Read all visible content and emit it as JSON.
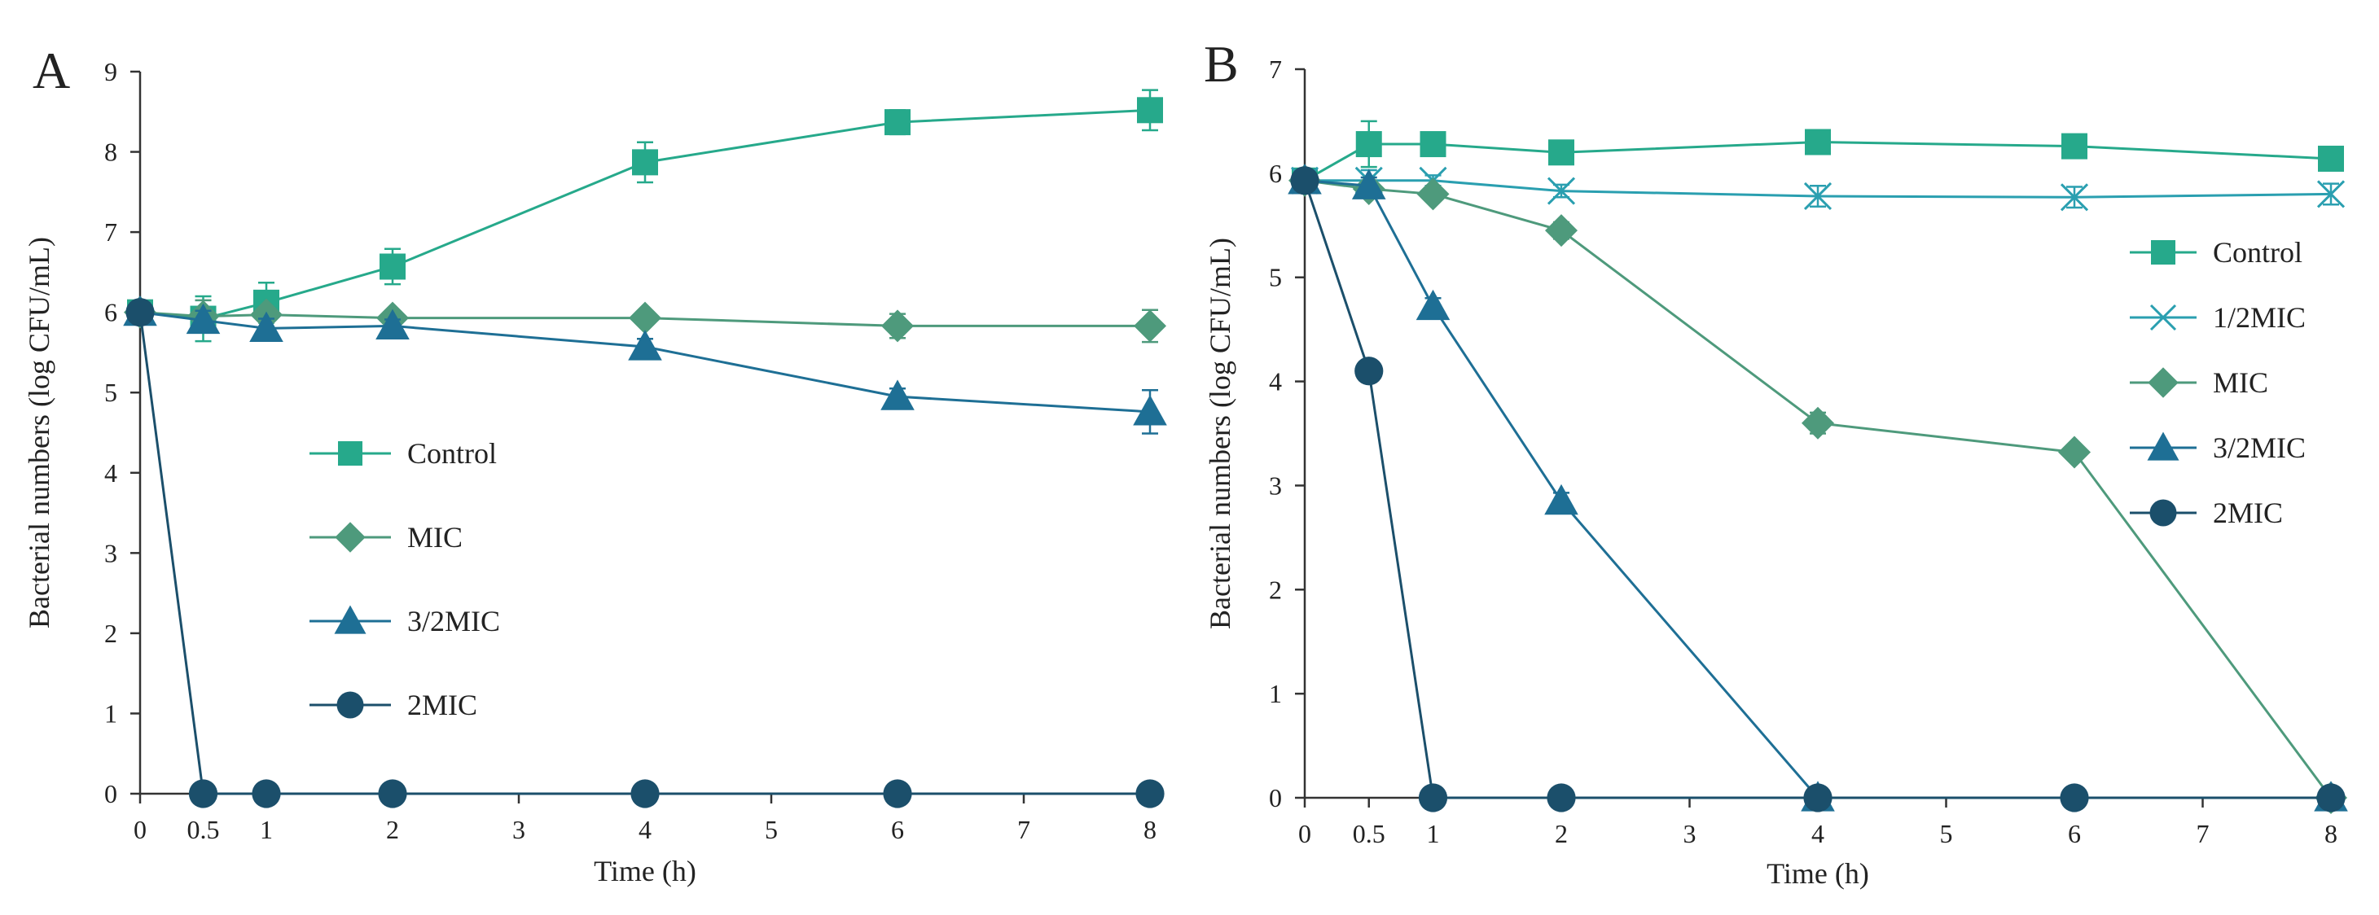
{
  "chart_data": [
    {
      "panel": "A",
      "type": "line",
      "xlabel": "Time  (h)",
      "ylabel": "Bacterial numbers (log CFU/mL)",
      "xlim": [
        0,
        8
      ],
      "ylim": [
        0,
        9
      ],
      "xticks": [
        0,
        0.5,
        1,
        2,
        3,
        4,
        5,
        6,
        7,
        8
      ],
      "xtick_labels": [
        "0",
        "0.5",
        "1",
        "2",
        "3",
        "4",
        "5",
        "6",
        "7",
        "8"
      ],
      "yticks": [
        0,
        1,
        2,
        3,
        4,
        5,
        6,
        7,
        8,
        9
      ],
      "legend_position": "center",
      "series": [
        {
          "name": "Control",
          "marker": "square",
          "color": "#26a98b",
          "x": [
            0,
            0.5,
            1,
            2,
            4,
            6,
            8
          ],
          "y": [
            6.0,
            5.92,
            6.12,
            6.57,
            7.87,
            8.37,
            8.52
          ],
          "err": [
            0,
            0.28,
            0.25,
            0.22,
            0.25,
            0.15,
            0.25
          ]
        },
        {
          "name": "MIC",
          "marker": "diamond",
          "color": "#4e9a7c",
          "x": [
            0,
            0.5,
            1,
            2,
            4,
            6,
            8
          ],
          "y": [
            6.0,
            5.95,
            5.97,
            5.93,
            5.93,
            5.83,
            5.83
          ],
          "err": [
            0,
            0.2,
            0.08,
            0.05,
            0.05,
            0.15,
            0.2
          ]
        },
        {
          "name": "3/2MIC",
          "marker": "triangle",
          "color": "#1e6f95",
          "x": [
            0,
            0.5,
            1,
            2,
            4,
            6,
            8
          ],
          "y": [
            6.0,
            5.9,
            5.8,
            5.83,
            5.57,
            4.95,
            4.76
          ],
          "err": [
            0,
            0.12,
            0.12,
            0.08,
            0.1,
            0.1,
            0.27
          ]
        },
        {
          "name": "2MIC",
          "marker": "circle",
          "color": "#1b4f6b",
          "x": [
            0,
            0.5,
            1,
            2,
            4,
            6,
            8
          ],
          "y": [
            6.0,
            0,
            0,
            0,
            0,
            0,
            0
          ],
          "err": [
            0,
            0,
            0,
            0,
            0,
            0,
            0
          ]
        }
      ]
    },
    {
      "panel": "B",
      "type": "line",
      "xlabel": "Time (h)",
      "ylabel": "Bacterial numbers (log CFU/mL)",
      "xlim": [
        0,
        8
      ],
      "ylim": [
        0,
        7
      ],
      "xticks": [
        0,
        0.5,
        1,
        2,
        3,
        4,
        5,
        6,
        7,
        8
      ],
      "xtick_labels": [
        "0",
        "0.5",
        "1",
        "2",
        "3",
        "4",
        "5",
        "6",
        "7",
        "8"
      ],
      "yticks": [
        0,
        1,
        2,
        3,
        4,
        5,
        6,
        7
      ],
      "legend_position": "right",
      "series": [
        {
          "name": "Control",
          "marker": "square",
          "color": "#26a98b",
          "x": [
            0,
            0.5,
            1,
            2,
            4,
            6,
            8
          ],
          "y": [
            5.93,
            6.28,
            6.28,
            6.2,
            6.3,
            6.26,
            6.14
          ],
          "err": [
            0,
            0.22,
            0.05,
            0.06,
            0.05,
            0.05,
            0.05
          ]
        },
        {
          "name": "1/2MIC",
          "marker": "x",
          "color": "#2a9fb0",
          "x": [
            0,
            0.5,
            1,
            2,
            4,
            6,
            8
          ],
          "y": [
            5.93,
            5.93,
            5.93,
            5.83,
            5.78,
            5.77,
            5.8
          ],
          "err": [
            0,
            0.1,
            0.05,
            0.06,
            0.1,
            0.1,
            0.1
          ]
        },
        {
          "name": "MIC",
          "marker": "diamond",
          "color": "#4e9a7c",
          "x": [
            0,
            0.5,
            1,
            2,
            4,
            6,
            8
          ],
          "y": [
            5.93,
            5.85,
            5.8,
            5.45,
            3.6,
            3.32,
            0
          ],
          "err": [
            0,
            0.05,
            0.05,
            0.08,
            0.1,
            0.05,
            0
          ]
        },
        {
          "name": "3/2MIC",
          "marker": "triangle",
          "color": "#1e6f95",
          "x": [
            0,
            0.5,
            1,
            2,
            4,
            8
          ],
          "y": [
            5.93,
            5.88,
            4.72,
            2.85,
            0,
            0
          ],
          "err": [
            0,
            0.08,
            0.08,
            0.08,
            0,
            0
          ]
        },
        {
          "name": "2MIC",
          "marker": "circle",
          "color": "#1b4f6b",
          "x": [
            0,
            0.5,
            1,
            2,
            4,
            6,
            8
          ],
          "y": [
            5.93,
            4.1,
            0,
            0,
            0,
            0,
            0
          ],
          "err": [
            0,
            0,
            0,
            0,
            0,
            0,
            0
          ]
        }
      ]
    }
  ]
}
